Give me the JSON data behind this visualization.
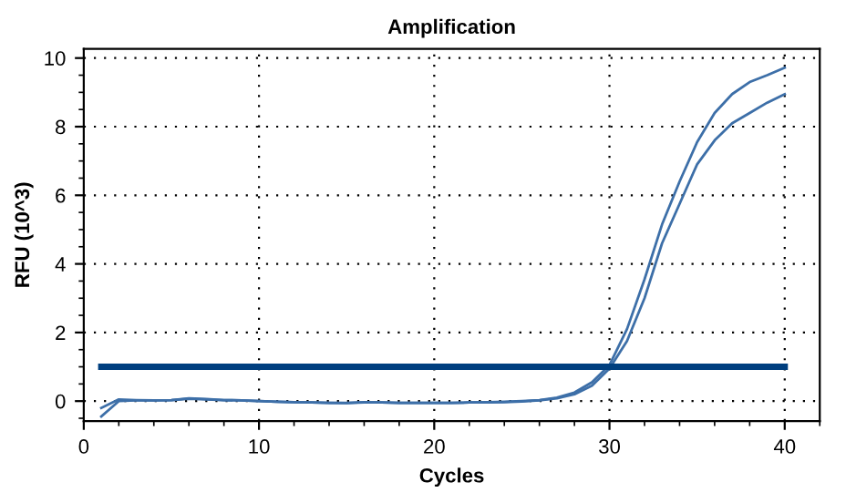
{
  "chart_data": {
    "type": "line",
    "title": "Amplification",
    "xlabel": "Cycles",
    "ylabel": "RFU (10^3)",
    "xlim": [
      0,
      42
    ],
    "ylim": [
      -0.58,
      10.27
    ],
    "xticks": [
      0,
      10,
      20,
      30,
      40
    ],
    "yticks": [
      0,
      2,
      4,
      6,
      8,
      10
    ],
    "grid": true,
    "line_style": "solid",
    "x": [
      1,
      2,
      3,
      4,
      5,
      6,
      7,
      8,
      9,
      10,
      11,
      12,
      13,
      14,
      15,
      16,
      17,
      18,
      19,
      20,
      21,
      22,
      23,
      24,
      25,
      26,
      27,
      28,
      29,
      30,
      31,
      32,
      33,
      34,
      35,
      36,
      37,
      38,
      39,
      40
    ],
    "series": [
      {
        "color": "#3d6fa8",
        "values": [
          -0.2,
          0.05,
          0.03,
          0.02,
          0.03,
          0.08,
          0.06,
          0.03,
          0.02,
          0,
          -0.02,
          -0.03,
          -0.04,
          -0.05,
          -0.05,
          -0.03,
          -0.04,
          -0.05,
          -0.05,
          -0.05,
          -0.05,
          -0.04,
          -0.03,
          -0.02,
          0,
          0.03,
          0.1,
          0.25,
          0.55,
          1.05,
          2.1,
          3.55,
          5.15,
          6.4,
          7.55,
          8.4,
          8.95,
          9.3,
          9.5,
          9.72
        ]
      },
      {
        "color": "#3d6fa8",
        "values": [
          -0.45,
          0.0,
          0.02,
          0.02,
          0.03,
          0.07,
          0.05,
          0.03,
          0.02,
          0,
          -0.02,
          -0.03,
          -0.04,
          -0.05,
          -0.06,
          -0.04,
          -0.04,
          -0.05,
          -0.05,
          -0.05,
          -0.05,
          -0.04,
          -0.04,
          -0.03,
          -0.01,
          0.02,
          0.08,
          0.2,
          0.45,
          0.95,
          1.75,
          3.0,
          4.6,
          5.75,
          6.9,
          7.6,
          8.1,
          8.4,
          8.7,
          8.95
        ]
      },
      {
        "color": "#003f7f",
        "x": [
          1,
          40
        ],
        "values": [
          1,
          1
        ]
      }
    ]
  }
}
